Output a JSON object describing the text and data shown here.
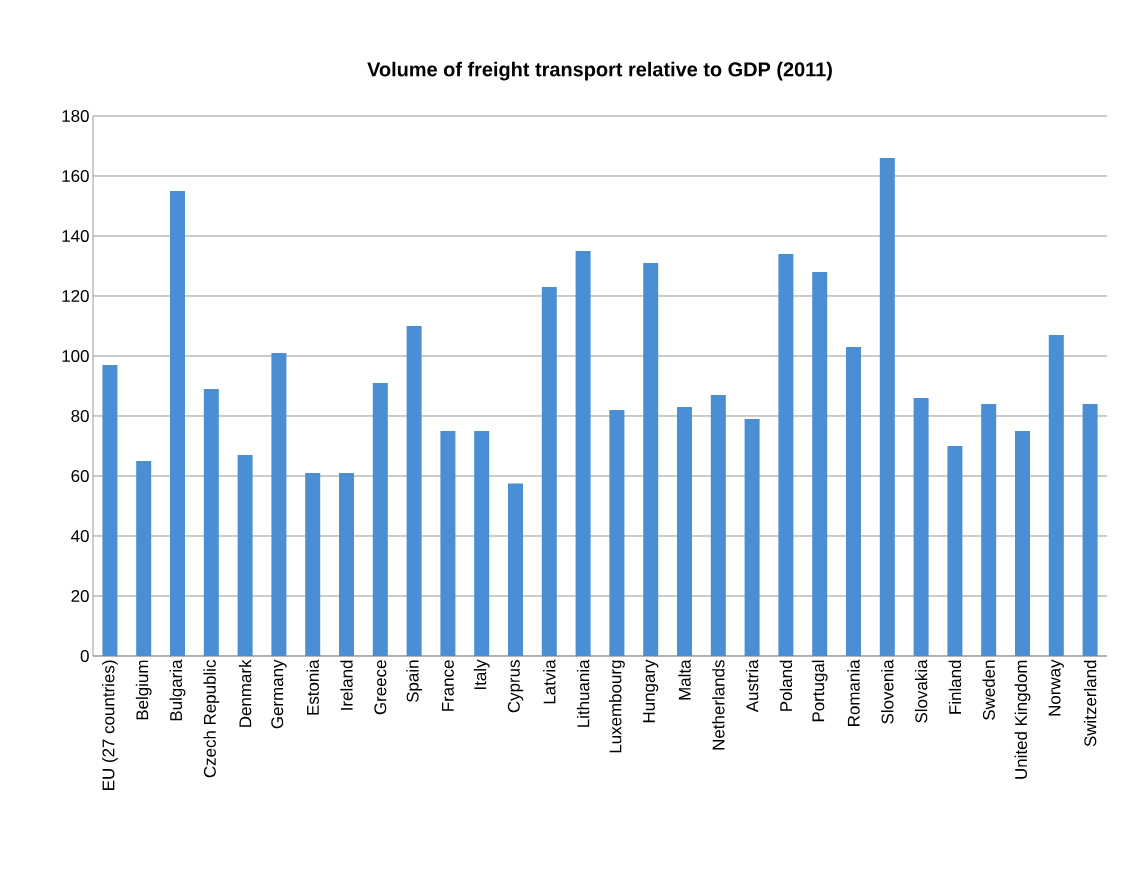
{
  "chart_data": {
    "type": "bar",
    "title": "Volume of freight transport relative to GDP (2011)",
    "categories": [
      "EU (27 countries)",
      "Belgium",
      "Bulgaria",
      "Czech Republic",
      "Denmark",
      "Germany",
      "Estonia",
      "Ireland",
      "Greece",
      "Spain",
      "France",
      "Italy",
      "Cyprus",
      "Latvia",
      "Lithuania",
      "Luxembourg",
      "Hungary",
      "Malta",
      "Netherlands",
      "Austria",
      "Poland",
      "Portugal",
      "Romania",
      "Slovenia",
      "Slovakia",
      "Finland",
      "Sweden",
      "United Kingdom",
      "Norway",
      "Switzerland"
    ],
    "values": [
      97,
      65,
      155,
      89,
      67,
      101,
      61,
      61,
      91,
      110,
      75,
      75,
      57.5,
      123,
      135,
      82,
      131,
      83,
      87,
      79,
      134,
      128,
      103,
      166,
      86,
      70,
      84,
      75,
      107,
      84
    ],
    "color": "#4a8fd4",
    "ylim": [
      0,
      180
    ],
    "yticks": [
      0,
      20,
      40,
      60,
      80,
      100,
      120,
      140,
      160,
      180
    ],
    "grid": "y"
  }
}
